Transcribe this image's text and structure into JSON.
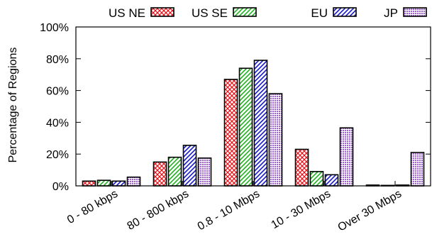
{
  "chart_data": {
    "type": "bar",
    "ylabel": "Percentage of Regions",
    "ylim": [
      0,
      100
    ],
    "y_tick_values": [
      0,
      20,
      40,
      60,
      80,
      100
    ],
    "y_tick_labels": [
      "0%",
      "20%",
      "40%",
      "60%",
      "80%",
      "100%"
    ],
    "categories": [
      "0 - 80 kbps",
      "80 - 800 kbps",
      "0.8 - 10 Mbps",
      "10 - 30 Mbps",
      "Over 30 Mbps"
    ],
    "legend_position": "top",
    "series": [
      {
        "name": "US NE",
        "color": "#e8141b",
        "pattern": "crosshatch",
        "values": [
          3,
          15,
          67,
          23,
          0.5
        ]
      },
      {
        "name": "US SE",
        "color": "#1fb41f",
        "pattern": "diagonal",
        "values": [
          3.5,
          18,
          74,
          9,
          0.3
        ]
      },
      {
        "name": "EU",
        "color": "#1418c8",
        "pattern": "diagonal",
        "values": [
          3,
          25.5,
          79,
          7,
          0.5
        ]
      },
      {
        "name": "JP",
        "color": "#a35fd6",
        "pattern": "dots",
        "values": [
          5.5,
          17.5,
          58,
          36.5,
          21
        ]
      }
    ]
  }
}
